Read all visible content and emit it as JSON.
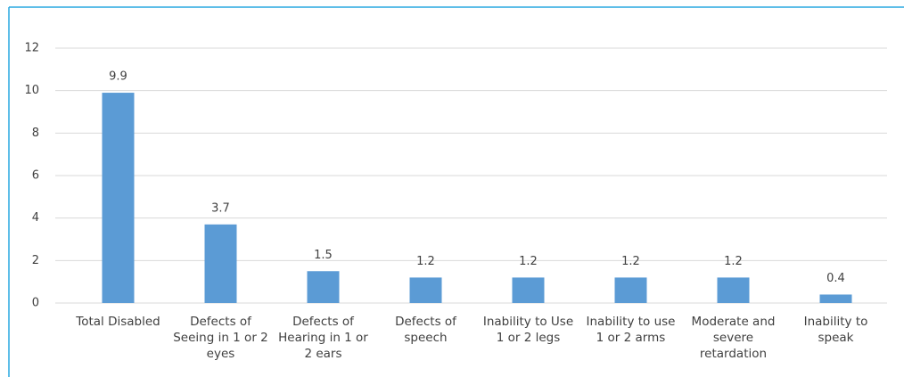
{
  "chart_data": {
    "type": "bar",
    "categories": [
      "Total Disabled",
      "Defects of Seeing in 1 or 2 eyes",
      "Defects of Hearing in 1 or 2 ears",
      "Defects of speech",
      "Inability to Use 1 or 2 legs",
      "Inability to use 1 or 2 arms",
      "Moderate and severe retardation",
      "Inability to speak"
    ],
    "values": [
      9.9,
      3.7,
      1.5,
      1.2,
      1.2,
      1.2,
      1.2,
      0.4
    ],
    "color": "#5b9bd5",
    "ylim": [
      0,
      12
    ],
    "yticks": [
      0,
      2,
      4,
      6,
      8,
      10,
      12
    ],
    "grid": true
  }
}
